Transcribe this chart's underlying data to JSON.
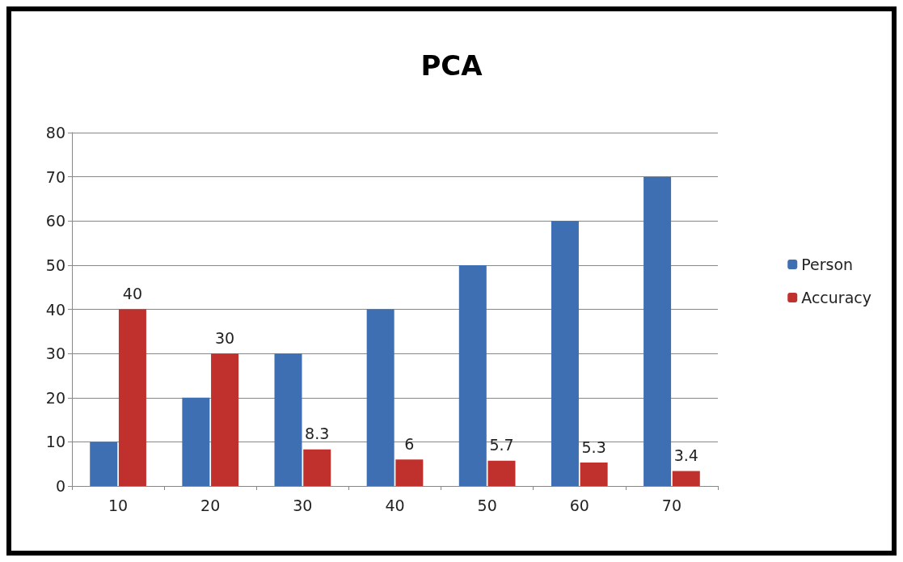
{
  "chart_data": {
    "type": "bar",
    "title": "PCA",
    "categories": [
      "10",
      "20",
      "30",
      "40",
      "50",
      "60",
      "70"
    ],
    "series": [
      {
        "name": "Person",
        "color": "#3f6fb3",
        "values": [
          10,
          20,
          30,
          40,
          50,
          60,
          70
        ]
      },
      {
        "name": "Accuracy",
        "color": "#c0312d",
        "values": [
          40,
          30,
          8.3,
          6,
          5.7,
          5.3,
          3.4
        ],
        "value_labels": [
          "40",
          "30",
          "8.3",
          "6",
          "5.7",
          "5.3",
          "3.4"
        ]
      }
    ],
    "ylim": [
      0,
      80
    ],
    "yticks": [
      0,
      10,
      20,
      30,
      40,
      50,
      60,
      70,
      80
    ],
    "grid": "y",
    "legend": "right"
  }
}
